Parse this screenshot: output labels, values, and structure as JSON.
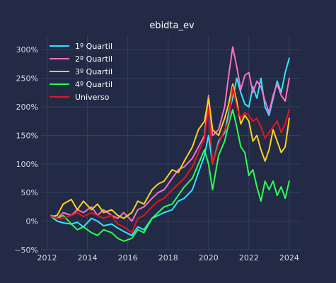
{
  "chart_data": {
    "type": "line",
    "title": "ebidta_ev",
    "xlabel": "",
    "ylabel": "",
    "xlim": [
      2011.7,
      2024.6
    ],
    "ylim": [
      -50,
      325
    ],
    "x_ticks": [
      2012,
      2014,
      2016,
      2018,
      2020,
      2022,
      2024
    ],
    "x_tick_labels": [
      "2012",
      "2014",
      "2016",
      "2018",
      "2020",
      "2022",
      "2024"
    ],
    "y_ticks": [
      -50,
      0,
      50,
      100,
      150,
      200,
      250,
      300
    ],
    "y_tick_labels": [
      "−50%",
      "0%",
      "50%",
      "100%",
      "150%",
      "200%",
      "250%",
      "300%"
    ],
    "grid": true,
    "legend_position": "top-left",
    "background": "#222a45",
    "grid_color": "#35405f",
    "x": [
      2012.2,
      2012.5,
      2012.8,
      2013.2,
      2013.5,
      2013.8,
      2014.2,
      2014.5,
      2014.8,
      2015.2,
      2015.5,
      2015.8,
      2016.2,
      2016.5,
      2016.8,
      2017.2,
      2017.5,
      2017.8,
      2018.2,
      2018.5,
      2018.8,
      2019.2,
      2019.5,
      2019.8,
      2020.0,
      2020.2,
      2020.5,
      2020.8,
      2021.0,
      2021.2,
      2021.4,
      2021.6,
      2021.8,
      2022.0,
      2022.2,
      2022.4,
      2022.6,
      2022.8,
      2023.0,
      2023.2,
      2023.4,
      2023.6,
      2023.8,
      2024.0
    ],
    "series": [
      {
        "name": "1º Quartil",
        "color": "#2ee6ff",
        "values": [
          8,
          0,
          -3,
          -5,
          -2,
          -10,
          5,
          0,
          -8,
          -5,
          -12,
          -18,
          -25,
          -10,
          -15,
          5,
          10,
          15,
          20,
          35,
          40,
          55,
          85,
          115,
          150,
          100,
          140,
          155,
          190,
          215,
          250,
          225,
          205,
          200,
          235,
          215,
          250,
          200,
          185,
          215,
          245,
          225,
          260,
          285
        ]
      },
      {
        "name": "2º Quartil",
        "color": "#ff6ec7",
        "values": [
          10,
          5,
          15,
          10,
          20,
          15,
          25,
          10,
          20,
          10,
          5,
          15,
          0,
          20,
          25,
          40,
          50,
          55,
          75,
          90,
          95,
          110,
          130,
          150,
          220,
          150,
          160,
          200,
          255,
          305,
          270,
          230,
          255,
          260,
          225,
          245,
          235,
          210,
          190,
          220,
          240,
          220,
          210,
          250
        ]
      },
      {
        "name": "3º Quartil",
        "color": "#ffd21a",
        "values": [
          8,
          10,
          30,
          38,
          20,
          35,
          20,
          30,
          15,
          20,
          10,
          5,
          15,
          35,
          30,
          55,
          65,
          70,
          90,
          85,
          105,
          130,
          160,
          175,
          215,
          160,
          150,
          180,
          205,
          240,
          210,
          170,
          185,
          175,
          140,
          150,
          125,
          105,
          125,
          160,
          140,
          120,
          130,
          180
        ]
      },
      {
        "name": "4º Quartil",
        "color": "#2cff4f",
        "values": [
          8,
          5,
          10,
          -5,
          -15,
          -10,
          -20,
          -25,
          -15,
          -20,
          -30,
          -35,
          -30,
          -15,
          -20,
          5,
          15,
          25,
          30,
          45,
          60,
          75,
          100,
          125,
          100,
          55,
          115,
          140,
          170,
          195,
          165,
          130,
          120,
          80,
          90,
          60,
          35,
          70,
          55,
          70,
          45,
          60,
          40,
          70
        ]
      },
      {
        "name": "Universo",
        "color": "#e8141e",
        "values": [
          8,
          5,
          5,
          10,
          15,
          8,
          15,
          10,
          5,
          10,
          -5,
          -10,
          -20,
          5,
          10,
          25,
          35,
          40,
          55,
          65,
          75,
          95,
          120,
          145,
          200,
          100,
          135,
          160,
          175,
          235,
          200,
          180,
          190,
          185,
          175,
          180,
          165,
          145,
          155,
          165,
          175,
          155,
          170,
          195
        ]
      }
    ]
  }
}
